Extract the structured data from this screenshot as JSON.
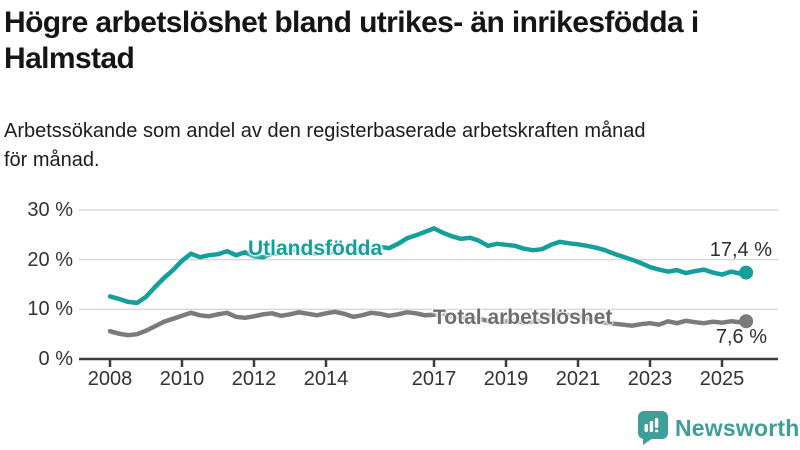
{
  "header": {
    "title_line1": "Högre arbetslöshet bland utrikes- än inrikesfödda i",
    "title_line2": "Halmstad",
    "subtitle_line1": "Arbetssökande som andel av den registerbaserade arbetskraften månad",
    "subtitle_line2": "för månad."
  },
  "branding": {
    "name": "Newsworthy",
    "color": "#3f9e97"
  },
  "chart_data": {
    "type": "line",
    "title": "Högre arbetslöshet bland utrikes- än inrikesfödda i Halmstad",
    "subtitle": "Arbetssökande som andel av den registerbaserade arbetskraften månad för månad.",
    "unit": "%",
    "grid": true,
    "legend": "inline-labels",
    "style": {
      "grid_color": "#d9d9d9",
      "axis_color": "#3d3d3d",
      "tick_label_color": "#333333",
      "value_label_color": "#2d2d2d",
      "background": "#ffffff"
    },
    "y_axis": {
      "range": [
        0,
        30
      ],
      "ticks": [
        {
          "value": 30,
          "label": "30 %"
        },
        {
          "value": 20,
          "label": "20 %"
        },
        {
          "value": 10,
          "label": "10 %"
        },
        {
          "value": 0,
          "label": "0 %"
        }
      ]
    },
    "x_axis": {
      "range": [
        2007.1,
        2026.6
      ],
      "ticks": [
        {
          "value": 2008,
          "label": "2008"
        },
        {
          "value": 2010,
          "label": "2010"
        },
        {
          "value": 2012,
          "label": "2012"
        },
        {
          "value": 2014,
          "label": "2014"
        },
        {
          "value": 2017,
          "label": "2017"
        },
        {
          "value": 2019,
          "label": "2019"
        },
        {
          "value": 2021,
          "label": "2021"
        },
        {
          "value": 2023,
          "label": "2023"
        },
        {
          "value": 2025,
          "label": "2025"
        }
      ]
    },
    "series": [
      {
        "name": "Utlandsfödda",
        "color": "#14a09a",
        "label_color": "#14a09a",
        "end_label": "17,4 %",
        "end_value": 17.4,
        "points": [
          [
            2008.0,
            12.6
          ],
          [
            2008.25,
            12.1
          ],
          [
            2008.5,
            11.5
          ],
          [
            2008.75,
            11.3
          ],
          [
            2009.0,
            12.5
          ],
          [
            2009.25,
            14.5
          ],
          [
            2009.5,
            16.3
          ],
          [
            2009.75,
            17.9
          ],
          [
            2010.0,
            19.8
          ],
          [
            2010.25,
            21.2
          ],
          [
            2010.5,
            20.5
          ],
          [
            2010.75,
            20.9
          ],
          [
            2011.0,
            21.1
          ],
          [
            2011.25,
            21.7
          ],
          [
            2011.5,
            20.9
          ],
          [
            2011.75,
            21.5
          ],
          [
            2012.0,
            20.7
          ],
          [
            2012.25,
            20.5
          ],
          [
            2012.5,
            21.2
          ],
          [
            2012.75,
            21.3
          ],
          [
            2013.0,
            22.2
          ],
          [
            2013.25,
            21.7
          ],
          [
            2013.5,
            21.4
          ],
          [
            2013.75,
            21.2
          ],
          [
            2014.0,
            21.8
          ],
          [
            2014.25,
            21.4
          ],
          [
            2014.5,
            21.9
          ],
          [
            2014.75,
            21.3
          ],
          [
            2015.0,
            21.6
          ],
          [
            2015.25,
            22.0
          ],
          [
            2015.5,
            22.6
          ],
          [
            2015.75,
            22.3
          ],
          [
            2016.0,
            23.2
          ],
          [
            2016.25,
            24.3
          ],
          [
            2016.5,
            24.9
          ],
          [
            2016.75,
            25.6
          ],
          [
            2017.0,
            26.3
          ],
          [
            2017.25,
            25.4
          ],
          [
            2017.5,
            24.7
          ],
          [
            2017.75,
            24.2
          ],
          [
            2018.0,
            24.4
          ],
          [
            2018.25,
            23.8
          ],
          [
            2018.5,
            22.8
          ],
          [
            2018.75,
            23.2
          ],
          [
            2019.0,
            23.0
          ],
          [
            2019.25,
            22.8
          ],
          [
            2019.5,
            22.2
          ],
          [
            2019.75,
            21.9
          ],
          [
            2020.0,
            22.1
          ],
          [
            2020.25,
            23.0
          ],
          [
            2020.5,
            23.6
          ],
          [
            2020.75,
            23.3
          ],
          [
            2021.0,
            23.1
          ],
          [
            2021.25,
            22.8
          ],
          [
            2021.5,
            22.4
          ],
          [
            2021.75,
            21.9
          ],
          [
            2022.0,
            21.2
          ],
          [
            2022.25,
            20.6
          ],
          [
            2022.5,
            20.0
          ],
          [
            2022.75,
            19.3
          ],
          [
            2023.0,
            18.5
          ],
          [
            2023.25,
            18.0
          ],
          [
            2023.5,
            17.6
          ],
          [
            2023.75,
            17.9
          ],
          [
            2024.0,
            17.3
          ],
          [
            2024.25,
            17.7
          ],
          [
            2024.5,
            18.0
          ],
          [
            2024.75,
            17.4
          ],
          [
            2025.0,
            17.0
          ],
          [
            2025.25,
            17.6
          ],
          [
            2025.5,
            17.2
          ],
          [
            2025.67,
            17.4
          ]
        ]
      },
      {
        "name": "Total arbetslöshet",
        "color": "#7b7b7e",
        "label_color": "#6e6e71",
        "end_label": "7,6 %",
        "end_value": 7.6,
        "points": [
          [
            2008.0,
            5.6
          ],
          [
            2008.25,
            5.1
          ],
          [
            2008.5,
            4.8
          ],
          [
            2008.75,
            5.0
          ],
          [
            2009.0,
            5.7
          ],
          [
            2009.25,
            6.6
          ],
          [
            2009.5,
            7.5
          ],
          [
            2009.75,
            8.1
          ],
          [
            2010.0,
            8.7
          ],
          [
            2010.25,
            9.3
          ],
          [
            2010.5,
            8.8
          ],
          [
            2010.75,
            8.6
          ],
          [
            2011.0,
            9.0
          ],
          [
            2011.25,
            9.3
          ],
          [
            2011.5,
            8.5
          ],
          [
            2011.75,
            8.3
          ],
          [
            2012.0,
            8.6
          ],
          [
            2012.25,
            9.0
          ],
          [
            2012.5,
            9.2
          ],
          [
            2012.75,
            8.7
          ],
          [
            2013.0,
            9.0
          ],
          [
            2013.25,
            9.4
          ],
          [
            2013.5,
            9.1
          ],
          [
            2013.75,
            8.8
          ],
          [
            2014.0,
            9.2
          ],
          [
            2014.25,
            9.5
          ],
          [
            2014.5,
            9.1
          ],
          [
            2014.75,
            8.5
          ],
          [
            2015.0,
            8.8
          ],
          [
            2015.25,
            9.3
          ],
          [
            2015.5,
            9.1
          ],
          [
            2015.75,
            8.7
          ],
          [
            2016.0,
            9.0
          ],
          [
            2016.25,
            9.4
          ],
          [
            2016.5,
            9.2
          ],
          [
            2016.75,
            8.8
          ],
          [
            2017.0,
            8.9
          ],
          [
            2017.25,
            9.1
          ],
          [
            2017.5,
            8.6
          ],
          [
            2017.75,
            8.2
          ],
          [
            2018.0,
            8.4
          ],
          [
            2018.25,
            8.1
          ],
          [
            2018.5,
            7.7
          ],
          [
            2018.75,
            7.4
          ],
          [
            2019.0,
            7.6
          ],
          [
            2019.25,
            7.7
          ],
          [
            2019.5,
            7.3
          ],
          [
            2019.75,
            7.5
          ],
          [
            2020.0,
            7.8
          ],
          [
            2020.25,
            8.9
          ],
          [
            2020.5,
            9.2
          ],
          [
            2020.75,
            8.8
          ],
          [
            2021.0,
            8.6
          ],
          [
            2021.25,
            8.2
          ],
          [
            2021.5,
            7.7
          ],
          [
            2021.75,
            7.3
          ],
          [
            2022.0,
            7.1
          ],
          [
            2022.25,
            6.9
          ],
          [
            2022.5,
            6.7
          ],
          [
            2022.75,
            7.0
          ],
          [
            2023.0,
            7.2
          ],
          [
            2023.25,
            6.9
          ],
          [
            2023.5,
            7.6
          ],
          [
            2023.75,
            7.2
          ],
          [
            2024.0,
            7.7
          ],
          [
            2024.25,
            7.4
          ],
          [
            2024.5,
            7.2
          ],
          [
            2024.75,
            7.5
          ],
          [
            2025.0,
            7.3
          ],
          [
            2025.25,
            7.6
          ],
          [
            2025.5,
            7.4
          ],
          [
            2025.67,
            7.6
          ]
        ]
      }
    ]
  }
}
